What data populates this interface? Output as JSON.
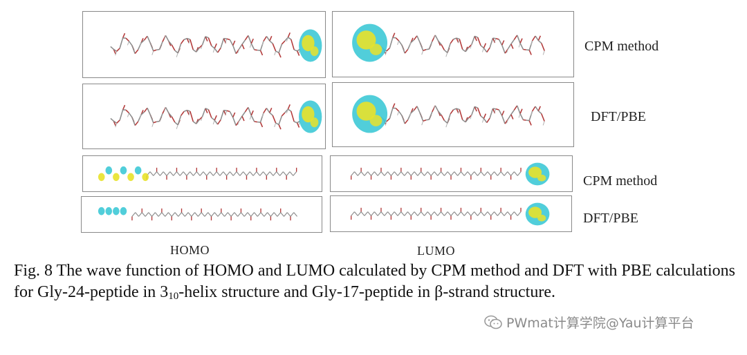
{
  "rows": [
    {
      "label": "CPM method"
    },
    {
      "label": "DFT/PBE"
    },
    {
      "label": "CPM method"
    },
    {
      "label": "DFT/PBE"
    }
  ],
  "columns": {
    "homo": "HOMO",
    "lumo": "LUMO"
  },
  "caption": {
    "part1": "Fig. 8 The wave function of HOMO and LUMO calculated by CPM method and DFT with PBE calculations for Gly-24-peptide in 3",
    "sub": "10",
    "part2": "-helix structure and Gly-17-peptide in β-strand structure."
  },
  "watermark": {
    "text": "PWmat计算学院@Yau计算平台",
    "icon": "wechat-icon"
  },
  "colors": {
    "orbital_cyan": "#3ec9d6",
    "orbital_yellow": "#e8e22a",
    "molecule_red": "#b33a3a",
    "molecule_gray": "#8c8c8c",
    "panel_border": "#888888"
  }
}
